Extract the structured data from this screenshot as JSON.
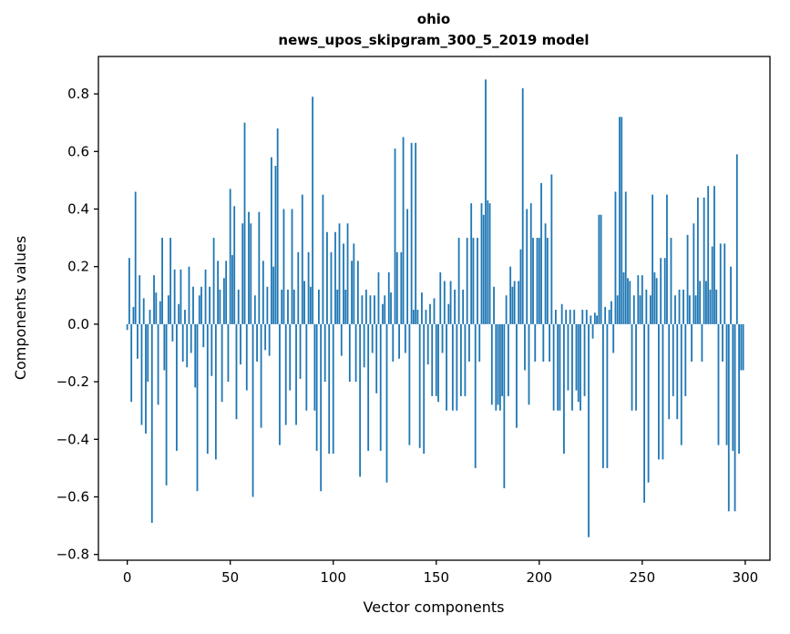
{
  "figure": {
    "title_line1": "ohio",
    "title_line2": "news_upos_skipgram_300_5_2019 model",
    "xlabel": "Vector components",
    "ylabel": "Components values"
  },
  "chart_data": {
    "type": "bar",
    "title": "ohio",
    "subtitle": "news_upos_skipgram_300_5_2019 model",
    "xlabel": "Vector components",
    "ylabel": "Components values",
    "bar_color": "#1f77b4",
    "background_color": "#ffffff",
    "axis_color": "#000000",
    "grid": false,
    "legend": null,
    "xticks": [
      0,
      50,
      100,
      150,
      200,
      250,
      300
    ],
    "yticks": [
      -0.8,
      -0.6,
      -0.4,
      -0.2,
      0.0,
      0.2,
      0.4,
      0.6,
      0.8
    ],
    "xlim": [
      -14,
      312
    ],
    "ylim": [
      -0.82,
      0.93
    ],
    "n_components": 300,
    "values": [
      -0.02,
      0.23,
      -0.27,
      0.06,
      0.46,
      -0.12,
      0.17,
      -0.35,
      0.09,
      -0.38,
      -0.2,
      0.05,
      -0.69,
      0.17,
      0.11,
      -0.28,
      0.08,
      0.3,
      -0.16,
      -0.56,
      0.1,
      0.3,
      -0.06,
      0.19,
      -0.44,
      0.07,
      0.19,
      -0.13,
      0.05,
      -0.15,
      0.2,
      -0.1,
      0.13,
      -0.22,
      -0.58,
      0.1,
      0.13,
      -0.08,
      0.19,
      -0.45,
      0.13,
      -0.18,
      0.3,
      -0.47,
      0.22,
      0.12,
      -0.27,
      0.16,
      0.22,
      -0.2,
      0.47,
      0.24,
      0.41,
      -0.33,
      0.12,
      -0.14,
      0.35,
      0.7,
      -0.23,
      0.39,
      0.35,
      -0.6,
      0.1,
      -0.13,
      0.39,
      -0.36,
      0.22,
      -0.09,
      0.13,
      -0.11,
      0.58,
      0.2,
      0.55,
      0.68,
      -0.42,
      0.12,
      0.4,
      -0.35,
      0.12,
      -0.23,
      0.4,
      0.12,
      -0.35,
      0.25,
      -0.19,
      0.45,
      0.15,
      -0.3,
      0.25,
      0.13,
      0.79,
      -0.3,
      -0.44,
      0.12,
      -0.58,
      0.45,
      -0.2,
      0.32,
      -0.45,
      0.25,
      -0.45,
      0.32,
      0.12,
      0.35,
      -0.11,
      0.28,
      0.12,
      0.35,
      -0.2,
      0.22,
      0.28,
      -0.2,
      0.22,
      -0.53,
      0.1,
      -0.15,
      0.12,
      -0.44,
      0.1,
      -0.1,
      0.1,
      -0.24,
      0.18,
      -0.44,
      0.07,
      0.1,
      -0.55,
      0.18,
      0.11,
      -0.13,
      0.61,
      0.25,
      -0.12,
      0.25,
      0.65,
      -0.1,
      0.4,
      -0.42,
      0.63,
      0.05,
      0.63,
      0.05,
      -0.43,
      0.11,
      -0.45,
      0.05,
      -0.14,
      0.07,
      -0.25,
      0.09,
      -0.25,
      -0.27,
      0.18,
      -0.1,
      0.15,
      -0.3,
      0.07,
      0.15,
      -0.3,
      0.12,
      -0.3,
      0.3,
      -0.25,
      0.12,
      -0.25,
      0.3,
      -0.13,
      0.42,
      0.3,
      -0.5,
      0.3,
      -0.13,
      0.42,
      0.38,
      0.85,
      0.43,
      0.42,
      -0.28,
      0.13,
      -0.3,
      -0.28,
      -0.3,
      -0.25,
      -0.57,
      0.1,
      -0.25,
      0.2,
      0.13,
      0.15,
      -0.36,
      0.15,
      0.26,
      0.82,
      -0.16,
      0.4,
      -0.28,
      0.42,
      0.3,
      -0.13,
      0.3,
      0.3,
      0.49,
      -0.13,
      0.35,
      0.3,
      -0.13,
      0.52,
      -0.3,
      0.05,
      -0.3,
      -0.3,
      0.07,
      -0.45,
      0.05,
      -0.23,
      0.05,
      -0.3,
      0.05,
      -0.23,
      -0.27,
      -0.3,
      0.05,
      -0.25,
      0.05,
      -0.74,
      0.03,
      -0.05,
      0.04,
      0.03,
      0.38,
      0.38,
      -0.5,
      0.06,
      -0.5,
      0.05,
      0.08,
      -0.1,
      0.46,
      0.1,
      0.72,
      0.72,
      0.18,
      0.46,
      0.16,
      0.15,
      -0.3,
      0.1,
      -0.3,
      0.17,
      0.1,
      0.17,
      -0.62,
      0.12,
      -0.55,
      0.1,
      0.45,
      0.18,
      0.16,
      -0.47,
      0.23,
      -0.47,
      0.23,
      0.45,
      -0.33,
      0.3,
      -0.25,
      0.1,
      -0.33,
      0.12,
      -0.42,
      0.12,
      -0.25,
      0.31,
      0.1,
      -0.13,
      0.35,
      0.1,
      0.44,
      0.15,
      -0.13,
      0.44,
      0.15,
      0.48,
      0.12,
      0.27,
      0.48,
      0.12,
      -0.42,
      0.28,
      -0.13,
      0.28,
      -0.42,
      -0.65,
      0.2,
      -0.44,
      -0.65,
      0.59,
      -0.45,
      -0.16,
      -0.16
    ]
  }
}
